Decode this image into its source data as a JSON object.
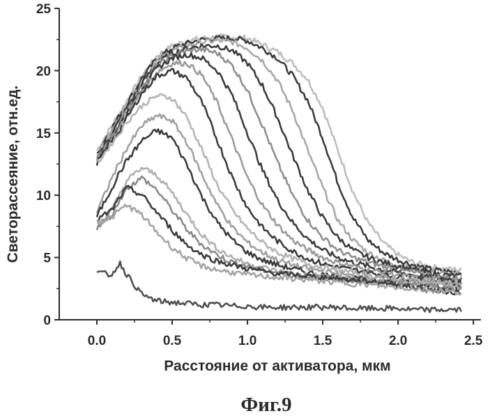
{
  "chart_data": {
    "type": "line",
    "xlabel": "Расстояние от активатора, мкм",
    "ylabel": "Светорассеяние, отн.ед.",
    "caption": "Фиг.9",
    "xlim": [
      -0.25,
      2.55
    ],
    "ylim": [
      0,
      25
    ],
    "x_ticks": [
      0.0,
      0.5,
      1.0,
      1.5,
      2.0,
      2.5
    ],
    "x_tick_labels": [
      "0.0",
      "0.5",
      "1.0",
      "1.5",
      "2.0",
      "2.5"
    ],
    "y_ticks": [
      0,
      5,
      10,
      15,
      20,
      25
    ],
    "y_tick_labels": [
      "0",
      "5",
      "10",
      "15",
      "20",
      "25"
    ],
    "grid": false,
    "legend": "none",
    "x": [
      0.0,
      0.1,
      0.15,
      0.2,
      0.3,
      0.4,
      0.5,
      0.6,
      0.7,
      0.8,
      0.9,
      1.0,
      1.1,
      1.2,
      1.3,
      1.4,
      1.5,
      1.6,
      1.7,
      1.8,
      1.9,
      2.0,
      2.1,
      2.2,
      2.3,
      2.42
    ],
    "series": [
      {
        "color": "#bdbdbd",
        "values": [
          13.6,
          15.6,
          16.6,
          17.6,
          19.6,
          21.2,
          22.0,
          22.4,
          22.6,
          22.7,
          22.7,
          22.6,
          22.1,
          21.5,
          20.6,
          19.3,
          17.0,
          13.6,
          10.3,
          7.8,
          6.2,
          5.2,
          4.6,
          4.3,
          4.1,
          4.0
        ]
      },
      {
        "color": "#3c3c3c",
        "values": [
          13.4,
          15.4,
          16.4,
          17.4,
          19.4,
          21.0,
          21.8,
          22.2,
          22.5,
          22.6,
          22.6,
          22.4,
          21.8,
          21.0,
          19.6,
          17.6,
          14.6,
          11.0,
          8.2,
          6.4,
          5.4,
          4.8,
          4.4,
          4.1,
          3.9,
          3.8
        ]
      },
      {
        "color": "#a8a8a8",
        "values": [
          13.2,
          15.2,
          16.2,
          17.2,
          19.2,
          20.8,
          21.6,
          22.0,
          22.3,
          22.4,
          22.3,
          21.8,
          20.8,
          19.2,
          16.8,
          13.6,
          10.6,
          8.0,
          6.4,
          5.4,
          4.8,
          4.4,
          4.1,
          3.9,
          3.7,
          3.6
        ]
      },
      {
        "color": "#3c3c3c",
        "values": [
          13.0,
          15.0,
          16.0,
          17.0,
          19.0,
          20.6,
          21.4,
          21.8,
          22.0,
          22.0,
          21.6,
          20.6,
          18.8,
          16.2,
          13.2,
          10.4,
          8.2,
          6.6,
          5.6,
          5.0,
          4.6,
          4.3,
          4.0,
          3.8,
          3.6,
          3.5
        ]
      },
      {
        "color": "#8e8e8e",
        "values": [
          12.9,
          14.8,
          15.8,
          16.8,
          18.8,
          20.4,
          21.2,
          21.6,
          21.7,
          21.4,
          20.4,
          18.4,
          15.6,
          12.6,
          10.0,
          8.0,
          6.6,
          5.6,
          5.0,
          4.6,
          4.3,
          4.0,
          3.8,
          3.6,
          3.4,
          3.3
        ]
      },
      {
        "color": "#3c3c3c",
        "values": [
          12.8,
          14.6,
          15.6,
          16.6,
          18.6,
          20.2,
          21.0,
          21.3,
          21.0,
          20.0,
          18.0,
          15.0,
          12.0,
          9.6,
          7.8,
          6.5,
          5.6,
          5.0,
          4.6,
          4.3,
          4.0,
          3.8,
          3.6,
          3.4,
          3.3,
          3.2
        ]
      },
      {
        "color": "#9a9a9a",
        "values": [
          12.7,
          14.4,
          15.4,
          16.4,
          18.4,
          19.9,
          20.6,
          20.6,
          19.6,
          17.4,
          14.4,
          11.4,
          9.2,
          7.6,
          6.4,
          5.6,
          5.0,
          4.6,
          4.3,
          4.0,
          3.8,
          3.6,
          3.4,
          3.3,
          3.2,
          3.1
        ]
      },
      {
        "color": "#3c3c3c",
        "values": [
          12.6,
          14.3,
          15.2,
          16.2,
          18.2,
          19.6,
          20.0,
          19.4,
          17.4,
          14.4,
          11.4,
          9.0,
          7.4,
          6.3,
          5.5,
          4.9,
          4.5,
          4.2,
          4.0,
          3.8,
          3.6,
          3.4,
          3.3,
          3.2,
          3.1,
          3.0
        ]
      },
      {
        "color": "#b4b4b4",
        "values": [
          12.5,
          14.2,
          15.0,
          15.9,
          17.2,
          18.0,
          17.8,
          16.2,
          13.6,
          10.8,
          8.8,
          7.3,
          6.2,
          5.4,
          4.9,
          4.5,
          4.2,
          4.0,
          3.8,
          3.6,
          3.4,
          3.3,
          3.2,
          3.1,
          3.0,
          2.9
        ]
      },
      {
        "color": "#a0a0a0",
        "values": [
          8.6,
          11.4,
          12.6,
          13.8,
          15.6,
          16.4,
          16.0,
          14.2,
          11.6,
          9.2,
          7.4,
          6.2,
          5.4,
          4.8,
          4.4,
          4.1,
          3.9,
          3.7,
          3.5,
          3.4,
          3.3,
          3.2,
          3.1,
          3.0,
          2.9,
          2.8
        ]
      },
      {
        "color": "#3c3c3c",
        "values": [
          8.3,
          10.6,
          11.8,
          12.8,
          14.4,
          15.2,
          14.6,
          12.4,
          9.8,
          7.8,
          6.4,
          5.4,
          4.8,
          4.4,
          4.1,
          3.8,
          3.6,
          3.4,
          3.3,
          3.2,
          3.1,
          3.0,
          2.9,
          2.8,
          2.7,
          2.6
        ]
      },
      {
        "color": "#b0b0b0",
        "values": [
          7.6,
          8.8,
          10.0,
          11.2,
          12.2,
          11.6,
          10.2,
          8.4,
          6.8,
          5.7,
          5.0,
          4.5,
          4.2,
          3.9,
          3.7,
          3.6,
          3.5,
          3.4,
          3.3,
          3.2,
          3.1,
          3.0,
          2.9,
          2.8,
          2.7,
          2.6
        ]
      },
      {
        "color": "#8a8a8a",
        "values": [
          7.4,
          8.4,
          9.6,
          10.6,
          11.4,
          10.4,
          8.8,
          7.2,
          6.0,
          5.2,
          4.6,
          4.3,
          4.0,
          3.8,
          3.6,
          3.5,
          3.4,
          3.3,
          3.2,
          3.1,
          3.0,
          2.9,
          2.8,
          2.7,
          2.6,
          2.5
        ]
      },
      {
        "color": "#3c3c3c",
        "values": [
          8.0,
          8.8,
          9.8,
          10.6,
          10.0,
          8.6,
          7.2,
          6.0,
          5.2,
          4.7,
          4.4,
          4.1,
          3.9,
          3.7,
          3.6,
          3.5,
          3.4,
          3.3,
          3.2,
          3.1,
          3.0,
          2.8,
          2.6,
          2.4,
          2.3,
          2.2
        ]
      },
      {
        "color": "#a4a4a4",
        "values": [
          7.8,
          8.2,
          8.8,
          9.2,
          8.4,
          7.0,
          5.8,
          4.9,
          4.3,
          4.0,
          3.8,
          3.6,
          3.5,
          3.4,
          3.3,
          3.2,
          3.1,
          3.0,
          2.9,
          2.8,
          2.7,
          2.6,
          2.5,
          2.4,
          2.3,
          2.2
        ]
      },
      {
        "color": "#505050",
        "values": [
          3.8,
          3.6,
          4.6,
          3.6,
          2.0,
          1.5,
          1.4,
          1.3,
          1.2,
          1.2,
          1.1,
          1.1,
          1.0,
          1.0,
          1.0,
          1.0,
          1.0,
          1.0,
          0.9,
          0.9,
          0.9,
          0.9,
          0.8,
          0.8,
          0.8,
          0.8
        ]
      }
    ]
  }
}
